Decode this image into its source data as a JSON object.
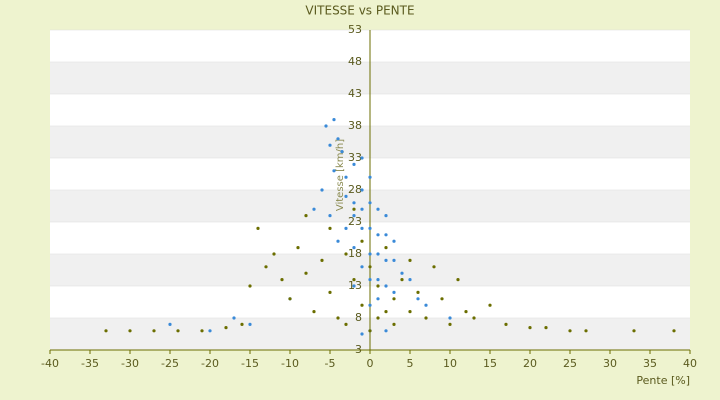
{
  "chart_data": {
    "type": "scatter",
    "title": "VITESSE vs PENTE",
    "x_label": "Pente [%]",
    "y_label": "Vitesse [km/h]",
    "xlim": [
      -40,
      40
    ],
    "xticks": [
      -40,
      -35,
      -30,
      -25,
      -20,
      -15,
      -10,
      -5,
      0,
      5,
      10,
      15,
      20,
      25,
      30,
      35,
      40
    ],
    "ylim": [
      3,
      53
    ],
    "yticks": [
      3,
      8,
      13,
      18,
      23,
      28,
      33,
      38,
      43,
      48,
      53
    ],
    "series": [
      {
        "color": "#3a8ad8",
        "x": [
          -5.5,
          -4.5,
          -4,
          -5,
          -3.5,
          -4.5,
          -3,
          -2,
          -1,
          -6,
          -3,
          -2,
          -1,
          0,
          -7,
          -5,
          -2,
          -1,
          0,
          1,
          2,
          -3,
          -1,
          0,
          1,
          2,
          3,
          -4,
          -2,
          0,
          1,
          2,
          3,
          4,
          5,
          -1,
          0,
          1,
          2,
          3,
          6,
          7,
          -2,
          0,
          1,
          -10,
          -17,
          -25,
          -20,
          -15,
          10,
          0,
          -1,
          2
        ],
        "values": [
          38,
          39,
          36,
          35,
          34,
          31,
          30,
          32,
          33,
          28,
          27,
          26,
          28,
          30,
          25,
          24,
          24,
          25,
          26,
          25,
          24,
          22,
          22,
          22,
          21,
          21,
          20,
          20,
          19,
          18,
          18,
          17,
          17,
          15,
          14,
          16,
          14,
          14,
          13,
          12,
          11,
          10,
          13,
          10,
          11,
          11,
          8,
          7,
          6,
          7,
          8,
          6,
          5.5,
          6
        ]
      },
      {
        "color": "#6b6e00",
        "x": [
          -33,
          -30,
          -27,
          -24,
          -21,
          -18,
          -16,
          -15,
          -13,
          -14,
          -12,
          -11,
          -10,
          -9,
          -8,
          -8,
          -7,
          -6,
          -5,
          -5,
          -4,
          -3,
          -3,
          -2,
          -2,
          -1,
          -1,
          0,
          0,
          1,
          1,
          2,
          2,
          3,
          3,
          4,
          5,
          5,
          6,
          7,
          8,
          9,
          10,
          11,
          12,
          13,
          15,
          17,
          20,
          22,
          25,
          27,
          33,
          38
        ],
        "values": [
          6,
          6,
          6,
          6,
          6,
          6.5,
          7,
          13,
          16,
          22,
          18,
          14,
          11,
          19,
          24,
          15,
          9,
          17,
          22,
          12,
          8,
          18,
          7,
          14,
          25,
          10,
          20,
          6,
          16,
          8,
          13,
          9,
          19,
          11,
          7,
          14,
          9,
          17,
          12,
          8,
          16,
          11,
          7,
          14,
          9,
          8,
          10,
          7,
          6.5,
          6.5,
          6,
          6,
          6,
          6
        ]
      }
    ]
  }
}
